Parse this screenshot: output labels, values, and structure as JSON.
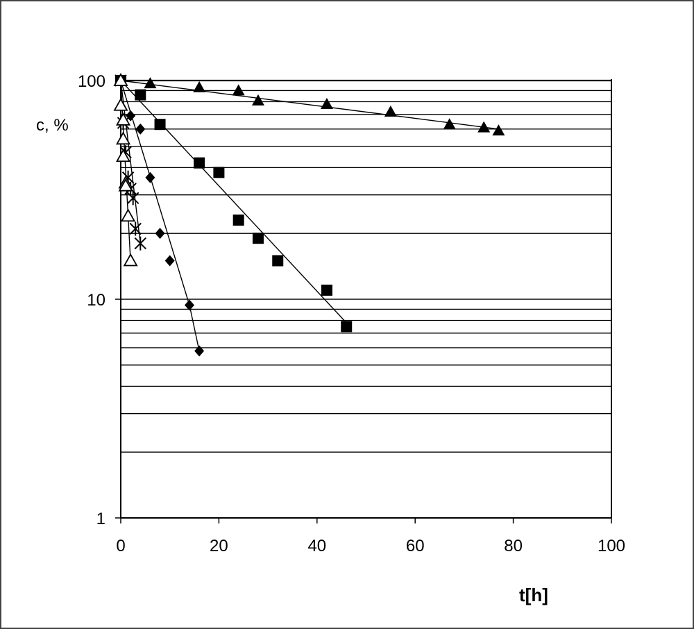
{
  "chart_data": {
    "type": "scatter",
    "title": "",
    "xlabel": "t[h]",
    "ylabel": "c, %",
    "xlim": [
      0,
      100
    ],
    "ylim": [
      1,
      100
    ],
    "yscale": "log",
    "grid": "horizontal",
    "legend": "none",
    "x_ticks": [
      "0",
      "20",
      "40",
      "60",
      "80",
      "100"
    ],
    "y_ticks": [
      "1",
      "10",
      "100"
    ],
    "series": [
      {
        "marker": "filled-triangle",
        "x": [
          0,
          6,
          16,
          24,
          28,
          42,
          55,
          67,
          74,
          77
        ],
        "y": [
          100,
          97,
          93,
          90,
          81,
          78,
          72,
          63,
          61,
          59
        ],
        "fit": [
          [
            0,
            100
          ],
          [
            77,
            60
          ]
        ]
      },
      {
        "marker": "filled-square",
        "x": [
          0,
          4,
          8,
          16,
          20,
          24,
          28,
          32,
          42,
          46
        ],
        "y": [
          100,
          86,
          63,
          42,
          38,
          23,
          19,
          15,
          11,
          7.5
        ],
        "fit": [
          [
            0,
            100
          ],
          [
            46,
            7.8
          ]
        ]
      },
      {
        "marker": "filled-diamond",
        "x": [
          0,
          2,
          4,
          6,
          8,
          10,
          14,
          16
        ],
        "y": [
          100,
          69,
          60,
          36,
          20,
          15,
          9.4,
          5.8
        ],
        "fit": [
          [
            0,
            100
          ],
          [
            14,
            9.4
          ],
          [
            16,
            5.8
          ]
        ]
      },
      {
        "marker": "star",
        "x": [
          0,
          0.5,
          1,
          1.5,
          2,
          2.5,
          3,
          4
        ],
        "y": [
          100,
          64,
          47,
          36,
          32,
          29,
          21,
          18
        ],
        "fit": [
          [
            0,
            100
          ],
          [
            4,
            18
          ]
        ]
      },
      {
        "marker": "open-triangle",
        "x": [
          0,
          0,
          0.5,
          0.5,
          0.5,
          1,
          1,
          1.5,
          2
        ],
        "y": [
          100,
          77,
          66,
          54,
          45,
          34,
          33,
          24,
          15
        ],
        "fit": [
          [
            0,
            100
          ],
          [
            2,
            15
          ]
        ]
      }
    ]
  }
}
